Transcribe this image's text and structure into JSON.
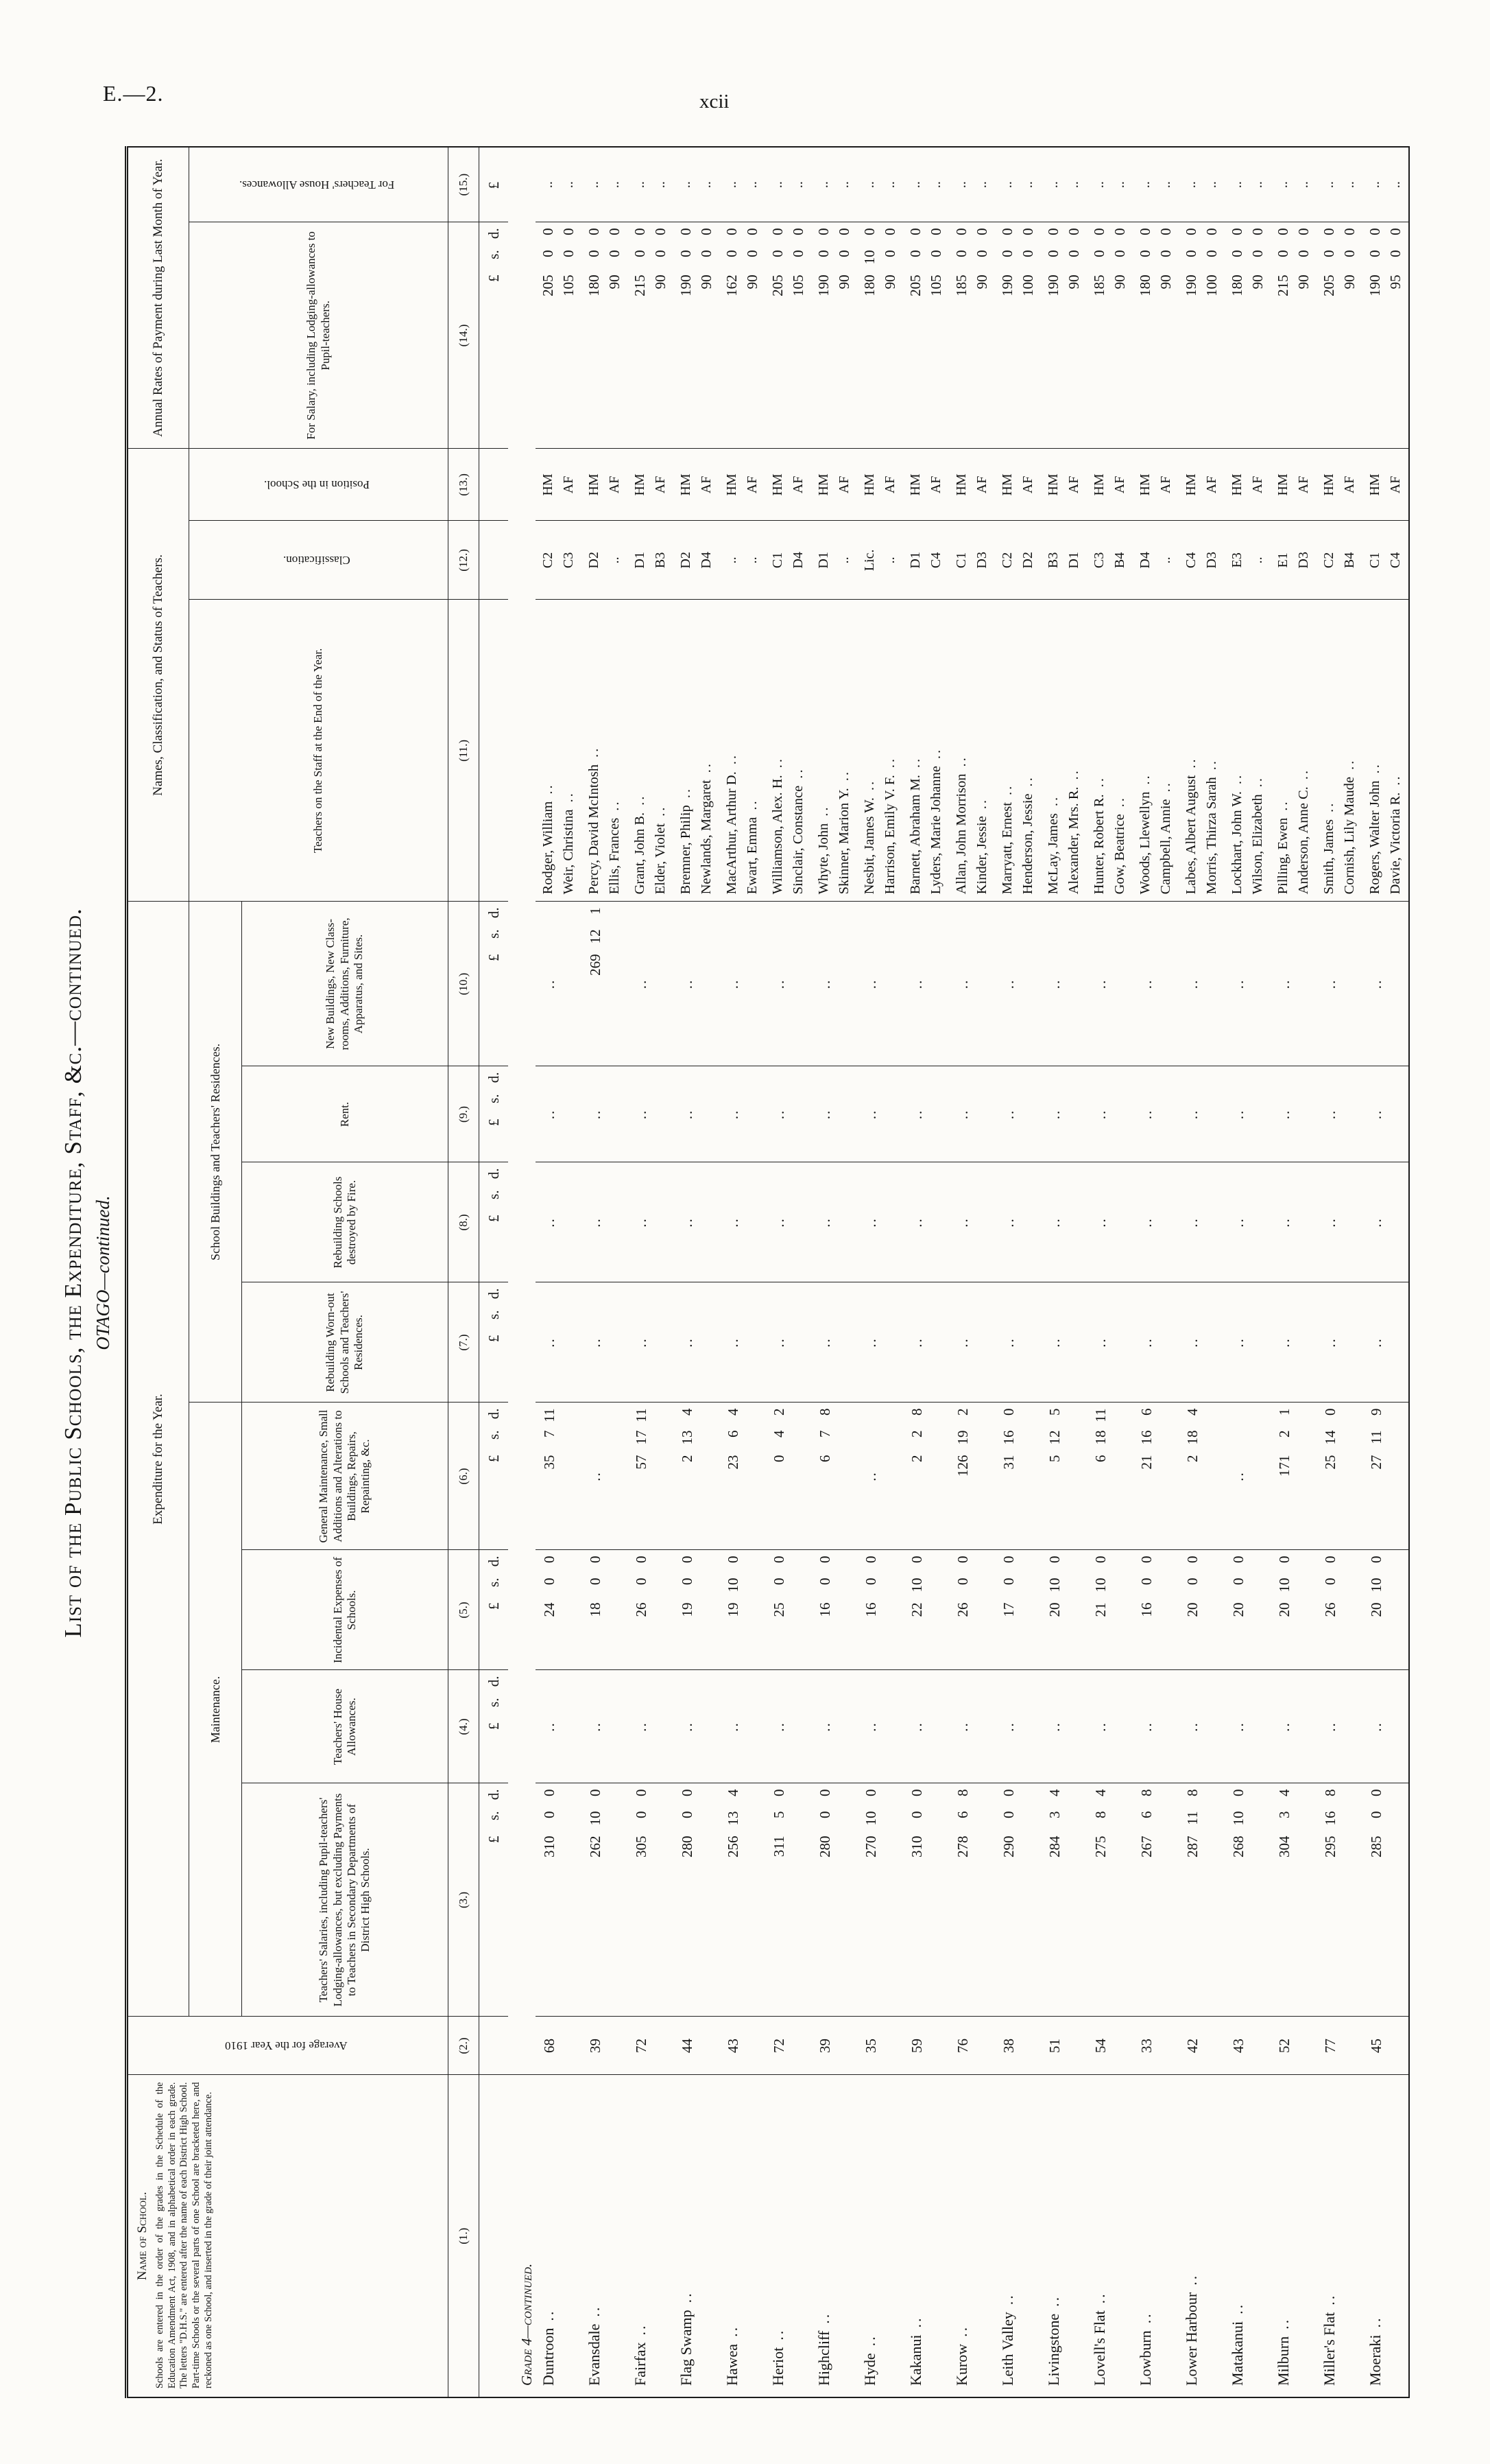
{
  "page": {
    "doc_ref": "E.—2.",
    "page_number": "xcii"
  },
  "misc": {
    "blank": "..",
    "leader": ".."
  },
  "table": {
    "title": "List of the Public Schools, the Expenditure, Staff, &c.—continued.",
    "subtitle": "OTAGO—continued.",
    "group_headers": {
      "expenditure": "Expenditure for the Year.",
      "maintenance": "Maintenance.",
      "school_buildings": "School Buildings and Teachers' Residences.",
      "names_status": "Names, Classification, and Status of Teachers.",
      "annual_rates": "Annual Rates of Payment during Last Month of Year."
    },
    "columns": [
      {
        "num": "(1.)",
        "label": "Name of School.",
        "note": "Schools are entered in the order of the grades in the Schedule of the Education Amendment Act, 1908, and in alphabetical order in each grade. The letters \"D.H.S.\" are entered after the name of each District High School. Part-time Schools or the several parts of one School are bracketed here, and reckoned as one School, and inserted in the grade of their joint attendance."
      },
      {
        "num": "(2.)",
        "label": "Average for the Year 1910"
      },
      {
        "num": "(3.)",
        "label": "Teachers' Salaries, including Pupil-teachers' Lodging-allowances, but excluding Payments to Teachers in Secondary Departments of District High Schools.",
        "units": "£ s. d."
      },
      {
        "num": "(4.)",
        "label": "Teachers' House Allowances.",
        "units": "£ s. d."
      },
      {
        "num": "(5.)",
        "label": "Incidental Expenses of Schools.",
        "units": "£ s. d."
      },
      {
        "num": "(6.)",
        "label": "General Maintenance, Small Additions and Alterations to Buildings, Repairs, Repainting, &c.",
        "units": "£ s. d."
      },
      {
        "num": "(7.)",
        "label": "Rebuilding Worn-out Schools and Teachers' Residences.",
        "units": "£ s. d."
      },
      {
        "num": "(8.)",
        "label": "Rebuilding Schools destroyed by Fire.",
        "units": "£ s. d."
      },
      {
        "num": "(9.)",
        "label": "Rent.",
        "units": "£ s. d."
      },
      {
        "num": "(10.)",
        "label": "New Buildings, New Class-rooms, Additions, Furniture, Apparatus, and Sites.",
        "units": "£ s. d."
      },
      {
        "num": "(11.)",
        "label": "Teachers on the Staff at the End of the Year."
      },
      {
        "num": "(12.)",
        "label": "Classification."
      },
      {
        "num": "(13.)",
        "label": "Position in the School."
      },
      {
        "num": "(14.)",
        "label": "For Salary, including Lodging-allowances to Pupil-teachers.",
        "units": "£ s. d."
      },
      {
        "num": "(15.)",
        "label": "For Teachers' House Allowances.",
        "units": "£"
      }
    ],
    "section_label": "Grade 4—continued.",
    "rows": [
      {
        "school": "Duntroon",
        "average": "68",
        "salaries": "310 0 0",
        "house_allowances": "..",
        "incidental": "24 0 0",
        "general_maintenance": "35 7 11",
        "rebuilding_wornout": "..",
        "rebuilding_fire": "..",
        "rent": "..",
        "new_buildings": "..",
        "teachers": [
          {
            "name": "Rodger, William",
            "classification": "C2",
            "position": "HM",
            "salary_rate": "205 0 0",
            "house_rate": ".."
          },
          {
            "name": "Weir, Christina",
            "classification": "C3",
            "position": "AF",
            "salary_rate": "105 0 0",
            "house_rate": ".."
          }
        ]
      },
      {
        "school": "Evansdale",
        "average": "39",
        "salaries": "262 10 0",
        "house_allowances": "..",
        "incidental": "18 0 0",
        "general_maintenance": "..",
        "rebuilding_wornout": "..",
        "rebuilding_fire": "..",
        "rent": "..",
        "new_buildings": "269 12 1",
        "teachers": [
          {
            "name": "Percy, David McIntosh",
            "classification": "D2",
            "position": "HM",
            "salary_rate": "180 0 0",
            "house_rate": ".."
          },
          {
            "name": "Ellis, Frances",
            "classification": "..",
            "position": "AF",
            "salary_rate": "90 0 0",
            "house_rate": ".."
          }
        ]
      },
      {
        "school": "Fairfax",
        "average": "72",
        "salaries": "305 0 0",
        "house_allowances": "..",
        "incidental": "26 0 0",
        "general_maintenance": "57 17 11",
        "rebuilding_wornout": "..",
        "rebuilding_fire": "..",
        "rent": "..",
        "new_buildings": "..",
        "teachers": [
          {
            "name": "Grant, John B.",
            "classification": "D1",
            "position": "HM",
            "salary_rate": "215 0 0",
            "house_rate": ".."
          },
          {
            "name": "Elder, Violet",
            "classification": "B3",
            "position": "AF",
            "salary_rate": "90 0 0",
            "house_rate": ".."
          }
        ]
      },
      {
        "school": "Flag Swamp",
        "average": "44",
        "salaries": "280 0 0",
        "house_allowances": "..",
        "incidental": "19 0 0",
        "general_maintenance": "2 13 4",
        "rebuilding_wornout": "..",
        "rebuilding_fire": "..",
        "rent": "..",
        "new_buildings": "..",
        "teachers": [
          {
            "name": "Bremner, Philip",
            "classification": "D2",
            "position": "HM",
            "salary_rate": "190 0 0",
            "house_rate": ".."
          },
          {
            "name": "Newlands, Margaret",
            "classification": "D4",
            "position": "AF",
            "salary_rate": "90 0 0",
            "house_rate": ".."
          }
        ]
      },
      {
        "school": "Hawea",
        "average": "43",
        "salaries": "256 13 4",
        "house_allowances": "..",
        "incidental": "19 10 0",
        "general_maintenance": "23 6 4",
        "rebuilding_wornout": "..",
        "rebuilding_fire": "..",
        "rent": "..",
        "new_buildings": "..",
        "teachers": [
          {
            "name": "MacArthur, Arthur D.",
            "classification": "..",
            "position": "HM",
            "salary_rate": "162 0 0",
            "house_rate": ".."
          },
          {
            "name": "Ewart, Emma",
            "classification": "..",
            "position": "AF",
            "salary_rate": "90 0 0",
            "house_rate": ".."
          }
        ]
      },
      {
        "school": "Heriot",
        "average": "72",
        "salaries": "311 5 0",
        "house_allowances": "..",
        "incidental": "25 0 0",
        "general_maintenance": "0 4 2",
        "rebuilding_wornout": "..",
        "rebuilding_fire": "..",
        "rent": "..",
        "new_buildings": "..",
        "teachers": [
          {
            "name": "Williamson, Alex. H.",
            "classification": "C1",
            "position": "HM",
            "salary_rate": "205 0 0",
            "house_rate": ".."
          },
          {
            "name": "Sinclair, Constance",
            "classification": "D4",
            "position": "AF",
            "salary_rate": "105 0 0",
            "house_rate": ".."
          }
        ]
      },
      {
        "school": "Highcliff",
        "average": "39",
        "salaries": "280 0 0",
        "house_allowances": "..",
        "incidental": "16 0 0",
        "general_maintenance": "6 7 8",
        "rebuilding_wornout": "..",
        "rebuilding_fire": "..",
        "rent": "..",
        "new_buildings": "..",
        "teachers": [
          {
            "name": "Whyte, John",
            "classification": "D1",
            "position": "HM",
            "salary_rate": "190 0 0",
            "house_rate": ".."
          },
          {
            "name": "Skinner, Marion Y.",
            "classification": "..",
            "position": "AF",
            "salary_rate": "90 0 0",
            "house_rate": ".."
          }
        ]
      },
      {
        "school": "Hyde",
        "average": "35",
        "salaries": "270 10 0",
        "house_allowances": "..",
        "incidental": "16 0 0",
        "general_maintenance": "..",
        "rebuilding_wornout": "..",
        "rebuilding_fire": "..",
        "rent": "..",
        "new_buildings": "..",
        "teachers": [
          {
            "name": "Nesbit, James W.",
            "classification": "Lic.",
            "position": "HM",
            "salary_rate": "180 10 0",
            "house_rate": ".."
          },
          {
            "name": "Harrison, Emily V. F.",
            "classification": "..",
            "position": "AF",
            "salary_rate": "90 0 0",
            "house_rate": ".."
          }
        ]
      },
      {
        "school": "Kakanui",
        "average": "59",
        "salaries": "310 0 0",
        "house_allowances": "..",
        "incidental": "22 10 0",
        "general_maintenance": "2 2 8",
        "rebuilding_wornout": "..",
        "rebuilding_fire": "..",
        "rent": "..",
        "new_buildings": "..",
        "teachers": [
          {
            "name": "Barnett, Abraham M.",
            "classification": "D1",
            "position": "HM",
            "salary_rate": "205 0 0",
            "house_rate": ".."
          },
          {
            "name": "Lyders, Marie Johanne",
            "classification": "C4",
            "position": "AF",
            "salary_rate": "105 0 0",
            "house_rate": ".."
          }
        ]
      },
      {
        "school": "Kurow",
        "average": "76",
        "salaries": "278 6 8",
        "house_allowances": "..",
        "incidental": "26 0 0",
        "general_maintenance": "126 19 2",
        "rebuilding_wornout": "..",
        "rebuilding_fire": "..",
        "rent": "..",
        "new_buildings": "..",
        "teachers": [
          {
            "name": "Allan, John Morrison",
            "classification": "C1",
            "position": "HM",
            "salary_rate": "185 0 0",
            "house_rate": ".."
          },
          {
            "name": "Kinder, Jessie",
            "classification": "D3",
            "position": "AF",
            "salary_rate": "90 0 0",
            "house_rate": ".."
          }
        ]
      },
      {
        "school": "Leith Valley",
        "average": "38",
        "salaries": "290 0 0",
        "house_allowances": "..",
        "incidental": "17 0 0",
        "general_maintenance": "31 16 0",
        "rebuilding_wornout": "..",
        "rebuilding_fire": "..",
        "rent": "..",
        "new_buildings": "..",
        "teachers": [
          {
            "name": "Marryatt, Ernest",
            "classification": "C2",
            "position": "HM",
            "salary_rate": "190 0 0",
            "house_rate": ".."
          },
          {
            "name": "Henderson, Jessie",
            "classification": "D2",
            "position": "AF",
            "salary_rate": "100 0 0",
            "house_rate": ".."
          }
        ]
      },
      {
        "school": "Livingstone",
        "average": "51",
        "salaries": "284 3 4",
        "house_allowances": "..",
        "incidental": "20 10 0",
        "general_maintenance": "5 12 5",
        "rebuilding_wornout": "..",
        "rebuilding_fire": "..",
        "rent": "..",
        "new_buildings": "..",
        "teachers": [
          {
            "name": "McLay, James",
            "classification": "B3",
            "position": "HM",
            "salary_rate": "190 0 0",
            "house_rate": ".."
          },
          {
            "name": "Alexander, Mrs. R.",
            "classification": "D1",
            "position": "AF",
            "salary_rate": "90 0 0",
            "house_rate": ".."
          }
        ]
      },
      {
        "school": "Lovell's Flat",
        "average": "54",
        "salaries": "275 8 4",
        "house_allowances": "..",
        "incidental": "21 10 0",
        "general_maintenance": "6 18 11",
        "rebuilding_wornout": "..",
        "rebuilding_fire": "..",
        "rent": "..",
        "new_buildings": "..",
        "teachers": [
          {
            "name": "Hunter, Robert R.",
            "classification": "C3",
            "position": "HM",
            "salary_rate": "185 0 0",
            "house_rate": ".."
          },
          {
            "name": "Gow, Beatrice",
            "classification": "B4",
            "position": "AF",
            "salary_rate": "90 0 0",
            "house_rate": ".."
          }
        ]
      },
      {
        "school": "Lowburn",
        "average": "33",
        "salaries": "267 6 8",
        "house_allowances": "..",
        "incidental": "16 0 0",
        "general_maintenance": "21 16 6",
        "rebuilding_wornout": "..",
        "rebuilding_fire": "..",
        "rent": "..",
        "new_buildings": "..",
        "teachers": [
          {
            "name": "Woods, Llewellyn",
            "classification": "D4",
            "position": "HM",
            "salary_rate": "180 0 0",
            "house_rate": ".."
          },
          {
            "name": "Campbell, Annie",
            "classification": "..",
            "position": "AF",
            "salary_rate": "90 0 0",
            "house_rate": ".."
          }
        ]
      },
      {
        "school": "Lower Harbour",
        "average": "42",
        "salaries": "287 11 8",
        "house_allowances": "..",
        "incidental": "20 0 0",
        "general_maintenance": "2 18 4",
        "rebuilding_wornout": "..",
        "rebuilding_fire": "..",
        "rent": "..",
        "new_buildings": "..",
        "teachers": [
          {
            "name": "Labes, Albert August",
            "classification": "C4",
            "position": "HM",
            "salary_rate": "190 0 0",
            "house_rate": ".."
          },
          {
            "name": "Morris, Thirza Sarah",
            "classification": "D3",
            "position": "AF",
            "salary_rate": "100 0 0",
            "house_rate": ".."
          }
        ]
      },
      {
        "school": "Matakanui",
        "average": "43",
        "salaries": "268 10 0",
        "house_allowances": "..",
        "incidental": "20 0 0",
        "general_maintenance": "..",
        "rebuilding_wornout": "..",
        "rebuilding_fire": "..",
        "rent": "..",
        "new_buildings": "..",
        "teachers": [
          {
            "name": "Lockhart, John W.",
            "classification": "E3",
            "position": "HM",
            "salary_rate": "180 0 0",
            "house_rate": ".."
          },
          {
            "name": "Wilson, Elizabeth",
            "classification": "..",
            "position": "AF",
            "salary_rate": "90 0 0",
            "house_rate": ".."
          }
        ]
      },
      {
        "school": "Milburn",
        "average": "52",
        "salaries": "304 3 4",
        "house_allowances": "..",
        "incidental": "20 10 0",
        "general_maintenance": "171 2 1",
        "rebuilding_wornout": "..",
        "rebuilding_fire": "..",
        "rent": "..",
        "new_buildings": "..",
        "teachers": [
          {
            "name": "Pilling, Ewen",
            "classification": "E1",
            "position": "HM",
            "salary_rate": "215 0 0",
            "house_rate": ".."
          },
          {
            "name": "Anderson, Anne C.",
            "classification": "D3",
            "position": "AF",
            "salary_rate": "90 0 0",
            "house_rate": ".."
          }
        ]
      },
      {
        "school": "Miller's Flat",
        "average": "77",
        "salaries": "295 16 8",
        "house_allowances": "..",
        "incidental": "26 0 0",
        "general_maintenance": "25 14 0",
        "rebuilding_wornout": "..",
        "rebuilding_fire": "..",
        "rent": "..",
        "new_buildings": "..",
        "teachers": [
          {
            "name": "Smith, James",
            "classification": "C2",
            "position": "HM",
            "salary_rate": "205 0 0",
            "house_rate": ".."
          },
          {
            "name": "Cornish, Lily Maude",
            "classification": "B4",
            "position": "AF",
            "salary_rate": "90 0 0",
            "house_rate": ".."
          }
        ]
      },
      {
        "school": "Moeraki",
        "average": "45",
        "salaries": "285 0 0",
        "house_allowances": "..",
        "incidental": "20 10 0",
        "general_maintenance": "27 11 9",
        "rebuilding_wornout": "..",
        "rebuilding_fire": "..",
        "rent": "..",
        "new_buildings": "..",
        "teachers": [
          {
            "name": "Rogers, Walter John",
            "classification": "C1",
            "position": "HM",
            "salary_rate": "190 0 0",
            "house_rate": ".."
          },
          {
            "name": "Davie, Victoria R.",
            "classification": "C4",
            "position": "AF",
            "salary_rate": "95 0 0",
            "house_rate": ".."
          }
        ]
      }
    ]
  }
}
